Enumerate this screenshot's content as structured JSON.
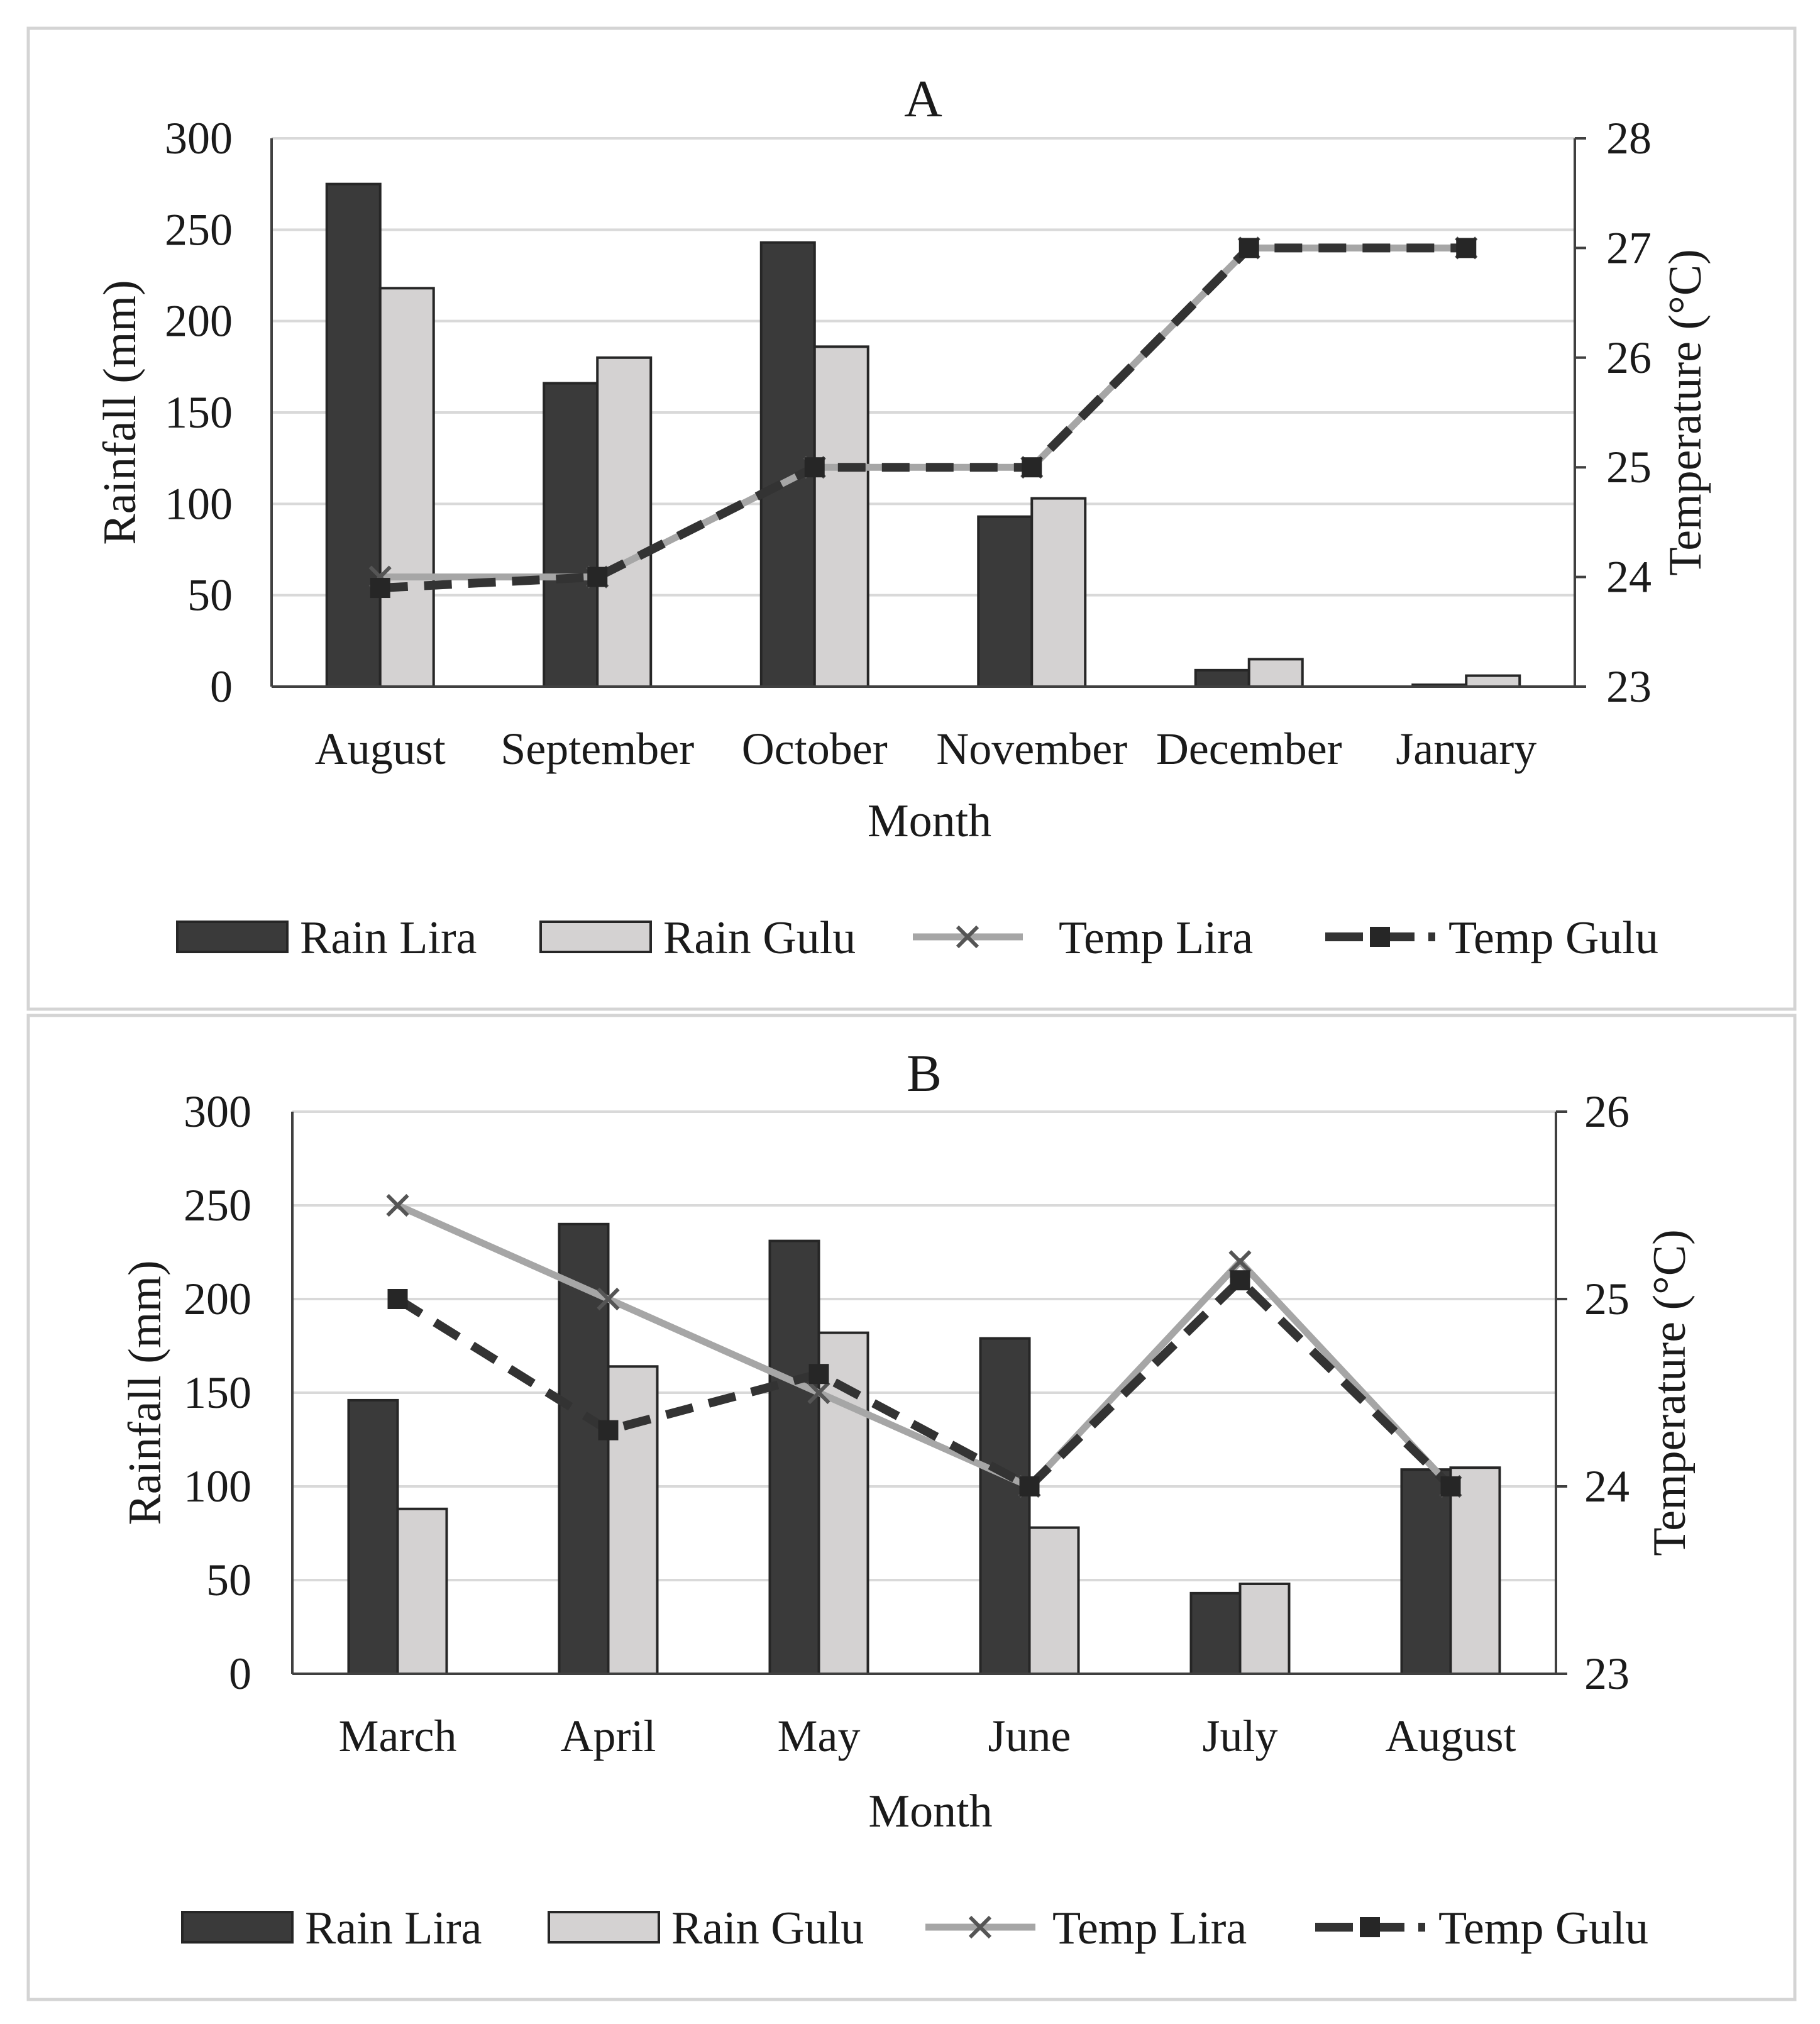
{
  "colors": {
    "rain_lira": "#3a3a3a",
    "rain_gulu": "#d4d2d2",
    "temp_lira": "#a6a6a6",
    "temp_gulu": "#333333",
    "grid": "#d9d9d9"
  },
  "chart_data": [
    {
      "type": "bar",
      "title": "A",
      "xlabel": "Month",
      "ylabel": "Rainfall (mm)",
      "y2label": "Temperature (°C)",
      "ylim": [
        0,
        300
      ],
      "y_ticks": [
        0,
        50,
        100,
        150,
        200,
        250,
        300
      ],
      "y2lim": [
        23,
        28
      ],
      "y2_ticks": [
        23,
        24,
        25,
        26,
        27,
        28
      ],
      "grid": true,
      "legend_position": "bottom",
      "categories": [
        "August",
        "September",
        "October",
        "November",
        "December",
        "January"
      ],
      "series": [
        {
          "name": "Rain Lira",
          "type": "bar",
          "axis": "left",
          "values": [
            275,
            166,
            243,
            93,
            9,
            1
          ]
        },
        {
          "name": "Rain Gulu",
          "type": "bar",
          "axis": "left",
          "values": [
            218,
            180,
            186,
            103,
            15,
            6
          ]
        },
        {
          "name": "Temp  Lira",
          "type": "line",
          "axis": "right",
          "marker": "x",
          "values": [
            24.0,
            24.0,
            25.0,
            25.0,
            27.0,
            27.0
          ]
        },
        {
          "name": "Temp Gulu",
          "type": "line",
          "axis": "right",
          "marker": "square",
          "dashed": true,
          "values": [
            23.9,
            24.0,
            25.0,
            25.0,
            27.0,
            27.0
          ]
        }
      ]
    },
    {
      "type": "bar",
      "title": "B",
      "xlabel": "Month",
      "ylabel": "Rainfall (mm)",
      "y2label": "Temperature (°C)",
      "ylim": [
        0,
        300
      ],
      "y_ticks": [
        0,
        50,
        100,
        150,
        200,
        250,
        300
      ],
      "y2lim": [
        23,
        26
      ],
      "y2_ticks": [
        23,
        24,
        25,
        26
      ],
      "grid": true,
      "legend_position": "bottom",
      "categories": [
        "March",
        "April",
        "May",
        "June",
        "July",
        "August"
      ],
      "series": [
        {
          "name": "Rain Lira",
          "type": "bar",
          "axis": "left",
          "values": [
            146,
            240,
            231,
            179,
            43,
            109
          ]
        },
        {
          "name": "Rain Gulu",
          "type": "bar",
          "axis": "left",
          "values": [
            88,
            164,
            182,
            78,
            48,
            110
          ]
        },
        {
          "name": "Temp Lira",
          "type": "line",
          "axis": "right",
          "marker": "x",
          "values": [
            25.5,
            25.0,
            24.5,
            24.0,
            25.2,
            24.0
          ]
        },
        {
          "name": "Temp Gulu",
          "type": "line",
          "axis": "right",
          "marker": "square",
          "dashed": true,
          "values": [
            25.0,
            24.3,
            24.6,
            24.0,
            25.1,
            24.0
          ]
        }
      ]
    }
  ]
}
